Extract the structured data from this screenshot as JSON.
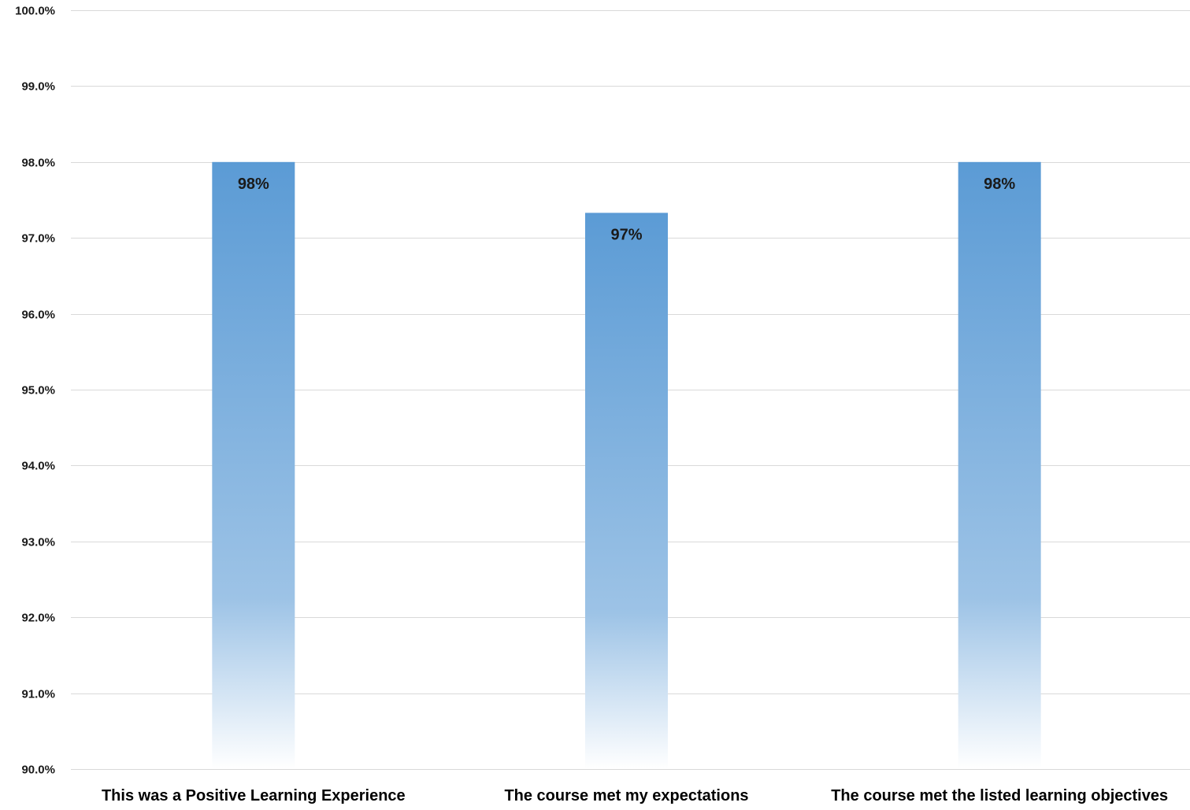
{
  "chart_data": {
    "type": "bar",
    "categories": [
      "This was a Positive Learning Experience",
      "The course met my expectations",
      "The course met the listed learning objectives"
    ],
    "values": [
      98.0,
      97.33,
      98.0
    ],
    "data_labels": [
      "98%",
      "97%",
      "98%"
    ],
    "ylim": [
      90,
      100
    ],
    "y_ticks": [
      90,
      91,
      92,
      93,
      94,
      95,
      96,
      97,
      98,
      99,
      100
    ],
    "y_tick_labels": [
      "90.0%",
      "91.0%",
      "92.0%",
      "93.0%",
      "94.0%",
      "95.0%",
      "96.0%",
      "97.0%",
      "98.0%",
      "99.0%",
      "100.0%"
    ],
    "title": "",
    "xlabel": "",
    "ylabel": "",
    "grid": true,
    "legend": "none",
    "bar_color": "#5b9bd5",
    "bar_fill": "gradient fading to white at the base"
  }
}
